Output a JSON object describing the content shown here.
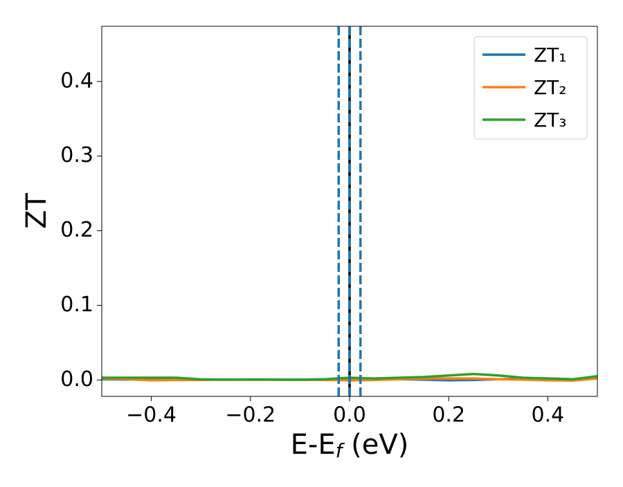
{
  "chart_data": {
    "type": "line",
    "ylabel": "ZT",
    "xlabel": [
      "E-E",
      "f",
      " (eV)"
    ],
    "x": [
      -0.5,
      -0.45,
      -0.4,
      -0.35,
      -0.3,
      -0.25,
      -0.2,
      -0.15,
      -0.1,
      -0.05,
      0,
      0.05,
      0.1,
      0.15,
      0.2,
      0.25,
      0.3,
      0.35,
      0.4,
      0.45,
      0.5
    ],
    "series": [
      {
        "name": "ZT₁",
        "color": "#1f77b4",
        "values": [
          0.001,
          0.0005,
          0.002,
          0.001,
          0.0005,
          0.0005,
          0.0006,
          0.0005,
          0.0004,
          0.001,
          0.001,
          0.001,
          0.001,
          0.0005,
          -0.0005,
          0.0,
          0.001,
          0.0015,
          0.002,
          0.001,
          0.002
        ]
      },
      {
        "name": "ZT₂",
        "color": "#ff7f0e",
        "values": [
          0.002,
          0.001,
          -0.0005,
          0.0,
          0.0,
          0.0002,
          0.0003,
          0.0002,
          0.0001,
          0.0,
          -0.0005,
          0.0,
          0.001,
          0.002,
          0.002,
          0.002,
          0.001,
          0.0005,
          -0.0005,
          -0.0008,
          0.002
        ]
      },
      {
        "name": "ZT₃",
        "color": "#2ca02c",
        "values": [
          0.003,
          0.003,
          0.003,
          0.003,
          0.0008,
          0.0005,
          0.0006,
          0.0005,
          0.0004,
          0.001,
          0.003,
          0.002,
          0.003,
          0.004,
          0.006,
          0.008,
          0.006,
          0.003,
          0.002,
          0.001,
          0.005
        ]
      }
    ],
    "vlines": [
      {
        "x": 0,
        "color": "#000000",
        "style": "solid"
      },
      {
        "x": 0,
        "color": "#1f77b4",
        "style": "dashed"
      },
      {
        "x": -0.022,
        "color": "#1f77b4",
        "style": "dashed"
      },
      {
        "x": 0.022,
        "color": "#1f77b4",
        "style": "dashed"
      }
    ],
    "xlim": [
      -0.5,
      0.5
    ],
    "ylim": [
      -0.022,
      0.474
    ],
    "xticks": [
      {
        "value": -0.4,
        "label": "−0.4"
      },
      {
        "value": -0.2,
        "label": "−0.2"
      },
      {
        "value": 0,
        "label": "0.0"
      },
      0.2,
      0.4
    ],
    "yticks": [
      {
        "value": 0,
        "label": "0.0"
      },
      0.1,
      0.2,
      0.3,
      0.4
    ],
    "grid": false,
    "legend": "upper right"
  }
}
